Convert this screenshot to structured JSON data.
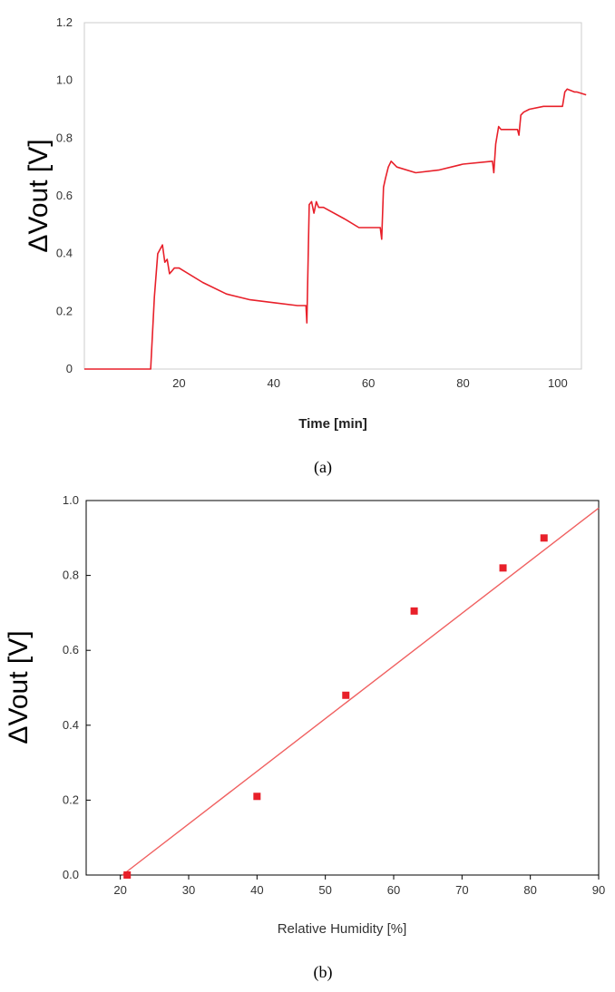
{
  "chart_data": [
    {
      "type": "line",
      "panel_label": "(a)",
      "title": "",
      "xlabel": "Time [min]",
      "ylabel": "ΔVout [V]",
      "xlim": [
        0,
        105
      ],
      "ylim": [
        0,
        1.2
      ],
      "x_ticks": [
        20,
        40,
        60,
        80,
        100
      ],
      "y_ticks": [
        "0",
        "0.2",
        "0.4",
        "0.6",
        "0.8",
        "1.0",
        "1.2"
      ],
      "grid": false,
      "line_color": "#e8202a",
      "series": [
        {
          "x": [
            0,
            14,
            14.8,
            15.5,
            16.5,
            17.0,
            17.5,
            18.0,
            18.5,
            19.0,
            20.0,
            25,
            30,
            35,
            40,
            45,
            46.8,
            47.0,
            47.5,
            48.0,
            48.5,
            49.0,
            49.5,
            50.5,
            55,
            58,
            60,
            62.5,
            62.8,
            63.2,
            63.6,
            64.2,
            64.8,
            66,
            70,
            75,
            80,
            86.2,
            86.5,
            86.9,
            87.5,
            88.0,
            89,
            91.5,
            91.8,
            92.2,
            92.8,
            94,
            97,
            101,
            101.5,
            102,
            103.5,
            104,
            106
          ],
          "y": [
            0,
            0,
            0.25,
            0.4,
            0.43,
            0.37,
            0.38,
            0.33,
            0.34,
            0.35,
            0.35,
            0.3,
            0.26,
            0.24,
            0.23,
            0.22,
            0.22,
            0.16,
            0.57,
            0.58,
            0.54,
            0.58,
            0.56,
            0.56,
            0.52,
            0.49,
            0.49,
            0.49,
            0.45,
            0.63,
            0.66,
            0.7,
            0.72,
            0.7,
            0.68,
            0.69,
            0.71,
            0.72,
            0.68,
            0.78,
            0.84,
            0.83,
            0.83,
            0.83,
            0.81,
            0.88,
            0.89,
            0.9,
            0.91,
            0.91,
            0.96,
            0.97,
            0.96,
            0.96,
            0.95
          ]
        }
      ]
    },
    {
      "type": "scatter",
      "panel_label": "(b)",
      "title": "",
      "xlabel": "Relative Humidity [%]",
      "ylabel": "ΔVout [V]",
      "xlim": [
        15,
        90
      ],
      "ylim": [
        0,
        1.0
      ],
      "x_ticks": [
        "20",
        "30",
        "40",
        "50",
        "60",
        "70",
        "80",
        "90"
      ],
      "y_ticks": [
        "0.0",
        "0.2",
        "0.4",
        "0.6",
        "0.8",
        "1.0"
      ],
      "grid": false,
      "point_color": "#e8202a",
      "fit_color": "#f06060",
      "points": {
        "x": [
          21,
          40,
          53,
          63,
          76,
          82
        ],
        "y": [
          0.0,
          0.21,
          0.48,
          0.705,
          0.82,
          0.9
        ]
      },
      "fit_line": {
        "x": [
          20.3,
          90
        ],
        "y": [
          0.0,
          0.98
        ]
      }
    }
  ]
}
